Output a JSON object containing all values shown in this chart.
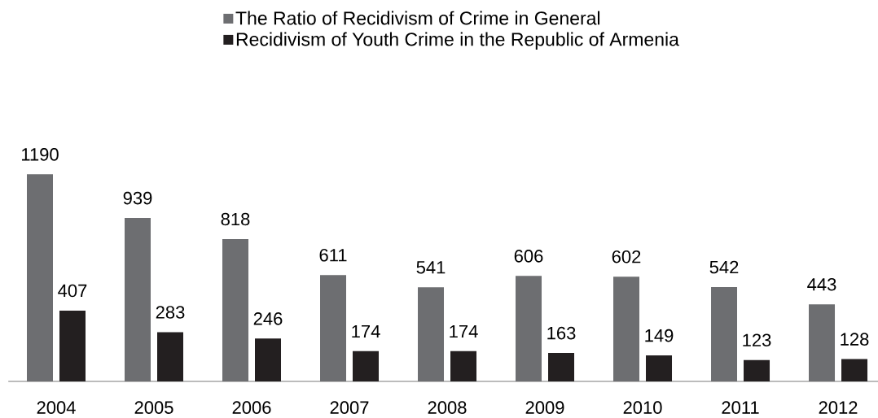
{
  "chart_data": {
    "type": "bar",
    "categories": [
      "2004",
      "2005",
      "2006",
      "2007",
      "2008",
      "2009",
      "2010",
      "2011",
      "2012"
    ],
    "series": [
      {
        "name": "The Ratio of Recidivism of Crime in General",
        "color": "#6d6e71",
        "values": [
          1190,
          939,
          818,
          611,
          541,
          606,
          602,
          542,
          443
        ]
      },
      {
        "name": "Recidivism of Youth Crime in the Republic of Armenia",
        "color": "#231f20",
        "values": [
          407,
          283,
          246,
          174,
          174,
          163,
          149,
          123,
          128
        ]
      }
    ],
    "data_labels": true,
    "legend": "top"
  }
}
